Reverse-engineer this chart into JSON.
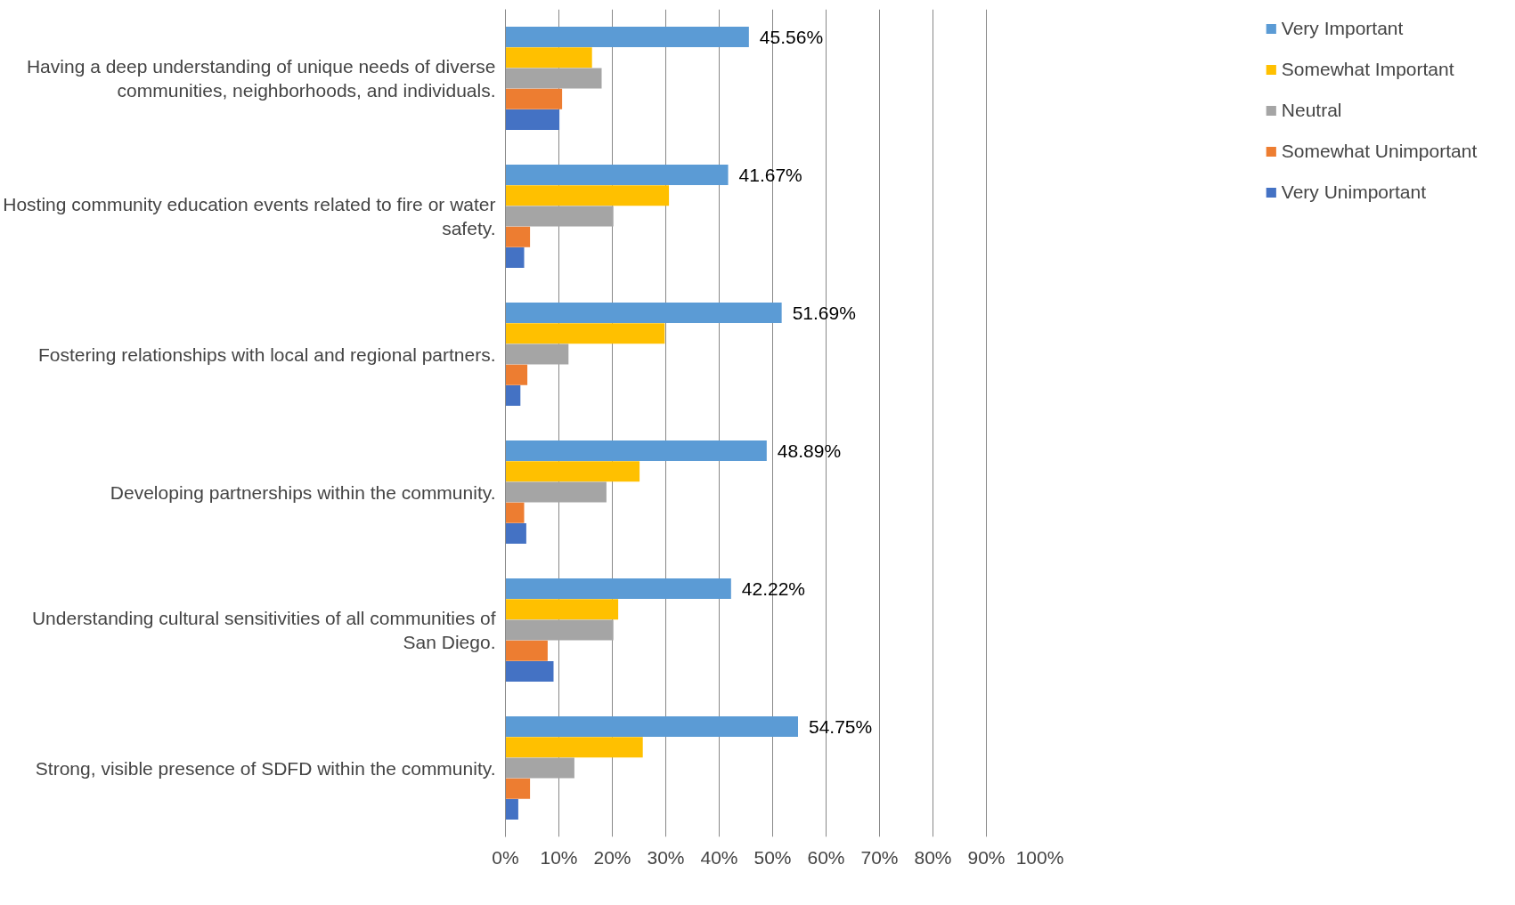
{
  "chart_data": {
    "type": "bar",
    "orientation": "horizontal",
    "categories": [
      "Having a deep understanding of unique needs of diverse communities, neighborhoods, and individuals.",
      "Hosting community education events related to fire or water safety.",
      "Fostering relationships with local and regional partners.",
      "Developing partnerships within the community.",
      "Understanding cultural sensitivities of all communities of San Diego.",
      "Strong, visible presence of SDFD within the community."
    ],
    "series": [
      {
        "name": "Very Important",
        "color": "#5b9bd5",
        "values": [
          45.56,
          41.67,
          51.69,
          48.89,
          42.22,
          54.75
        ],
        "value_labels": [
          "45.56%",
          "41.67%",
          "51.69%",
          "48.89%",
          "42.22%",
          "54.75%"
        ]
      },
      {
        "name": "Somewhat Important",
        "color": "#ffc000",
        "values": [
          16.2,
          30.6,
          29.8,
          25.1,
          21.1,
          25.7
        ]
      },
      {
        "name": "Neutral",
        "color": "#a5a5a5",
        "values": [
          18.0,
          20.2,
          11.8,
          18.9,
          20.2,
          12.9
        ]
      },
      {
        "name": "Somewhat Unimportant",
        "color": "#ed7d31",
        "values": [
          10.6,
          4.6,
          4.1,
          3.5,
          7.9,
          4.6
        ]
      },
      {
        "name": "Very Unimportant",
        "color": "#4472c4",
        "values": [
          10.1,
          3.5,
          2.8,
          3.9,
          9.0,
          2.4
        ]
      }
    ],
    "xlim": [
      0,
      100
    ],
    "xticks": [
      {
        "value": 0,
        "label": "0%"
      },
      {
        "value": 10,
        "label": "10%"
      },
      {
        "value": 20,
        "label": "20%"
      },
      {
        "value": 30,
        "label": "30%"
      },
      {
        "value": 40,
        "label": "40%"
      },
      {
        "value": 50,
        "label": "50%"
      },
      {
        "value": 60,
        "label": "60%"
      },
      {
        "value": 70,
        "label": "70%"
      },
      {
        "value": 80,
        "label": "80%"
      },
      {
        "value": 90,
        "label": "90%"
      },
      {
        "value": 100,
        "label": "100%"
      }
    ],
    "grid": "x",
    "legend": "top right"
  }
}
